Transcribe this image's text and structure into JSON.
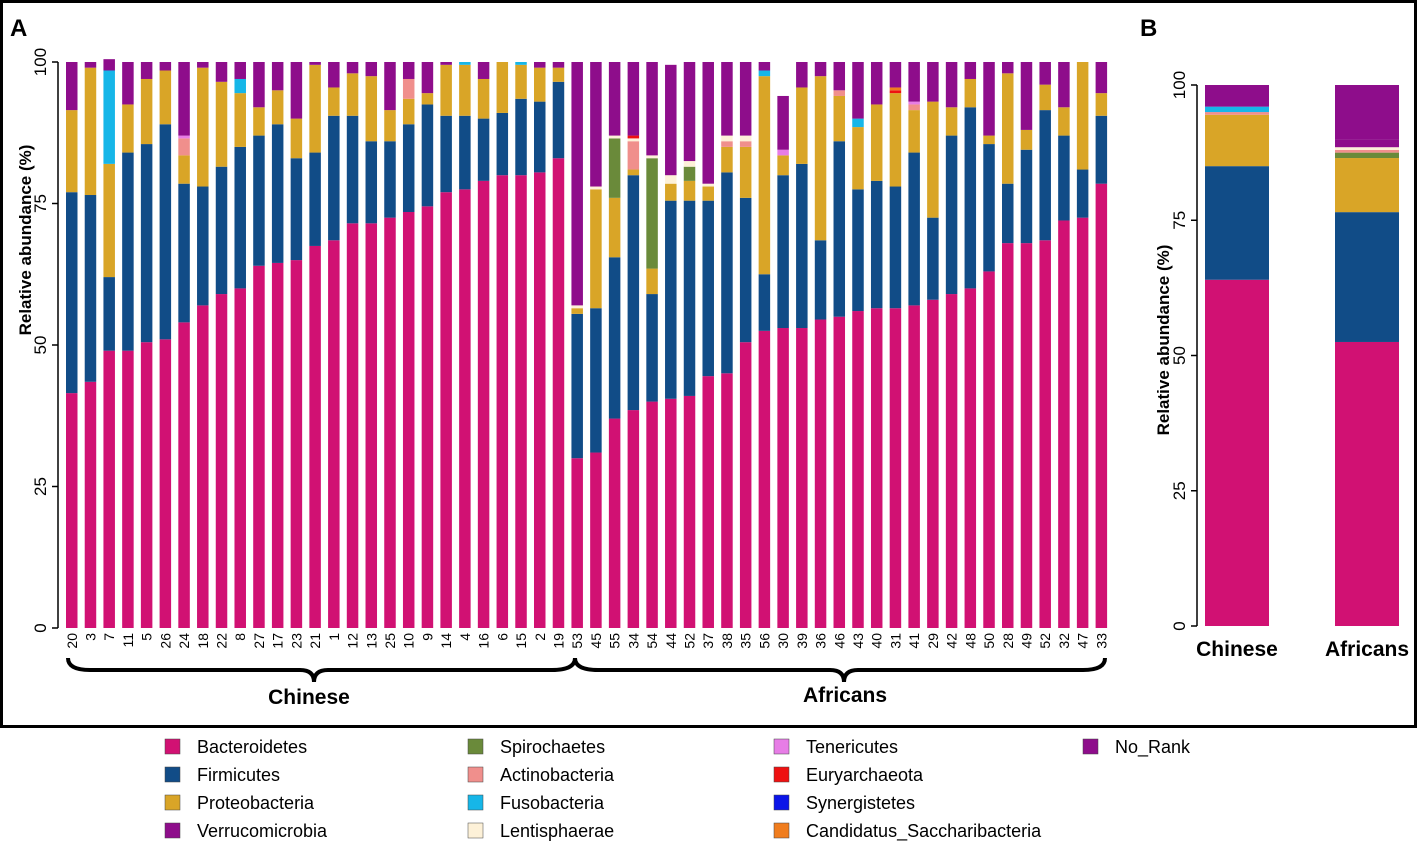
{
  "colors": {
    "Bacteroidetes": "#d11173",
    "Firmicutes": "#114c87",
    "Proteobacteria": "#d9a527",
    "Verrucomicrobia": "#8e0d8b",
    "Spirochaetes": "#6a8a3a",
    "Actinobacteria": "#f08f8c",
    "Fusobacteria": "#16b6e8",
    "Lentisphaerae": "#fdf1d8",
    "Tenericutes": "#e77de6",
    "Euryarchaeota": "#ee1111",
    "Synergistetes": "#0b15e8",
    "Candidatus_Saccharibacteria": "#f07d1e",
    "No_Rank": "#8e0d8b"
  },
  "panel_a_letter": "A",
  "panel_b_letter": "B",
  "group_labels": {
    "chinese": "Chinese",
    "africans": "Africans"
  },
  "legend": [
    "Bacteroidetes",
    "Firmicutes",
    "Proteobacteria",
    "Verrucomicrobia",
    "Spirochaetes",
    "Actinobacteria",
    "Fusobacteria",
    "Lentisphaerae",
    "Tenericutes",
    "Euryarchaeota",
    "Synergistetes",
    "Candidatus_Saccharibacteria",
    "No_Rank"
  ],
  "chart_data": [
    {
      "panel": "A",
      "type": "bar",
      "stacked": true,
      "title": "",
      "ylabel": "Relative abundance (%)",
      "ylim": [
        0,
        100
      ],
      "yticks": [
        0,
        25,
        50,
        75,
        100
      ],
      "categories": [
        "20",
        "3",
        "7",
        "11",
        "5",
        "26",
        "24",
        "18",
        "22",
        "8",
        "27",
        "17",
        "23",
        "21",
        "1",
        "12",
        "13",
        "25",
        "10",
        "9",
        "14",
        "4",
        "16",
        "6",
        "15",
        "2",
        "19",
        "53",
        "45",
        "55",
        "34",
        "54",
        "44",
        "52",
        "37",
        "38",
        "35",
        "56",
        "30",
        "39",
        "36",
        "46",
        "43",
        "40",
        "31",
        "41",
        "29",
        "42",
        "48",
        "50",
        "28",
        "49",
        "52",
        "32",
        "47",
        "33"
      ],
      "groups": [
        {
          "name": "Chinese",
          "count": 27
        },
        {
          "name": "Africans",
          "count": 29
        }
      ],
      "series": [
        {
          "name": "Bacteroidetes",
          "values": [
            41.5,
            43.5,
            49,
            49,
            50.5,
            51,
            54,
            57,
            59,
            60,
            64,
            64.5,
            65,
            67.5,
            68.5,
            71.5,
            71.5,
            72.5,
            73.5,
            74.5,
            77,
            77.5,
            79,
            80,
            80,
            80.5,
            83,
            30,
            31,
            37,
            38.5,
            40,
            40.5,
            41,
            44.5,
            45,
            50.5,
            52.5,
            53,
            53,
            54.5,
            55,
            56,
            56.5,
            56.5,
            57,
            58,
            59,
            60,
            63,
            68,
            68,
            68.5,
            72,
            72.5,
            78.5
          ]
        },
        {
          "name": "Firmicutes",
          "values": [
            35.5,
            33,
            13,
            35,
            35,
            38,
            24.5,
            21,
            22.5,
            25,
            23,
            24.5,
            18,
            16.5,
            22,
            19,
            14.5,
            13.5,
            15.5,
            18,
            13.5,
            13,
            11,
            11,
            13.5,
            12.5,
            13.5,
            25.5,
            25.5,
            28.5,
            41.5,
            19,
            35,
            34.5,
            31,
            35.5,
            25.5,
            10,
            27,
            29,
            14,
            31,
            21.5,
            22.5,
            21.5,
            27,
            14.5,
            28,
            32,
            22.5,
            10.5,
            16.5,
            23,
            15,
            8.5,
            12
          ]
        },
        {
          "name": "Proteobacteria",
          "values": [
            14.5,
            22.5,
            20,
            8.5,
            11.5,
            9.5,
            5,
            21,
            15,
            9.5,
            5,
            6,
            7,
            15.5,
            5,
            7.5,
            11.5,
            5.5,
            4.5,
            2,
            9,
            9,
            7,
            9,
            6,
            6,
            2.5,
            1,
            21,
            10.5,
            1,
            4.5,
            3,
            3.5,
            2.5,
            4.5,
            9,
            35,
            3.5,
            13.5,
            29,
            8,
            11,
            13.5,
            16.5,
            7.5,
            20.5,
            5,
            5,
            1.5,
            19.5,
            3.5,
            4.5,
            5,
            19,
            4
          ]
        },
        {
          "name": "Spirochaetes",
          "values": [
            0,
            0,
            0,
            0,
            0,
            0,
            0,
            0,
            0,
            0,
            0,
            0,
            0,
            0,
            0,
            0,
            0,
            0,
            0,
            0,
            0,
            0,
            0,
            0,
            0,
            0,
            0,
            0,
            0,
            10.5,
            0,
            19.5,
            0,
            2.5,
            0,
            0,
            0,
            0,
            0,
            0,
            0,
            0,
            0,
            0,
            0,
            0,
            0,
            0,
            0,
            0,
            0,
            0,
            0,
            0,
            0,
            0
          ]
        },
        {
          "name": "Actinobacteria",
          "values": [
            0,
            0,
            0,
            0,
            0,
            0,
            3,
            0,
            0,
            0,
            0,
            0,
            0,
            0,
            0,
            0,
            0,
            0,
            3.5,
            0,
            0,
            0,
            0,
            0,
            0,
            0,
            0,
            0,
            0,
            0,
            5,
            0,
            0,
            0,
            0,
            1,
            1,
            0,
            0,
            0,
            0,
            1,
            0,
            0,
            0,
            1,
            0,
            0,
            0,
            0,
            0,
            0,
            0,
            0,
            0,
            0
          ]
        },
        {
          "name": "Fusobacteria",
          "values": [
            0,
            0,
            16.5,
            0,
            0,
            0,
            0,
            0,
            0,
            2.5,
            0,
            0,
            0,
            0,
            0,
            0,
            0,
            0,
            0,
            0,
            0,
            0.5,
            0,
            0,
            0.5,
            0,
            0,
            0,
            0,
            0,
            0,
            0,
            0,
            0,
            0,
            0,
            0,
            1,
            0,
            0,
            0,
            0,
            1.5,
            0,
            0,
            0,
            0,
            0,
            0,
            0,
            0,
            0,
            0,
            0,
            0,
            0
          ]
        },
        {
          "name": "Lentisphaerae",
          "values": [
            0,
            0,
            0,
            0,
            0,
            0,
            0,
            0,
            0,
            0,
            0,
            0,
            0,
            0,
            0,
            0,
            0,
            0,
            0,
            0,
            0,
            0,
            0,
            0,
            0,
            0,
            0,
            0.5,
            0.5,
            0.5,
            0.5,
            0.5,
            1.5,
            1,
            0.5,
            1,
            1,
            0,
            0,
            0,
            0,
            0,
            0,
            0,
            0,
            0,
            0,
            0,
            0,
            0,
            0,
            0,
            0,
            0,
            0,
            0
          ]
        },
        {
          "name": "Tenericutes",
          "values": [
            0,
            0,
            0,
            0,
            0,
            0,
            0.5,
            0,
            0,
            0,
            0,
            0,
            0,
            0,
            0,
            0,
            0,
            0,
            0,
            0,
            0,
            0,
            0,
            0,
            0,
            0,
            0,
            0,
            0,
            0,
            0,
            0,
            0,
            0,
            0,
            0,
            0,
            0,
            1,
            0,
            0,
            0,
            0,
            0,
            0,
            0.5,
            0,
            0,
            0,
            0,
            0,
            0,
            0,
            0,
            0,
            0
          ]
        },
        {
          "name": "Euryarchaeota",
          "values": [
            0,
            0,
            0,
            0,
            0,
            0,
            0,
            0,
            0,
            0,
            0,
            0,
            0,
            0,
            0,
            0,
            0,
            0,
            0,
            0,
            0,
            0,
            0,
            0,
            0,
            0,
            0,
            0,
            0,
            0,
            0.5,
            0,
            0,
            0,
            0,
            0,
            0,
            0,
            0,
            0,
            0,
            0,
            0,
            0,
            0.5,
            0,
            0,
            0,
            0,
            0,
            0,
            0,
            0,
            0,
            0,
            0
          ]
        },
        {
          "name": "Synergistetes",
          "values": [
            0,
            0,
            0,
            0,
            0,
            0,
            0,
            0,
            0,
            0,
            0,
            0,
            0,
            0,
            0,
            0,
            0,
            0,
            0,
            0,
            0,
            0,
            0,
            0,
            0,
            0,
            0,
            0,
            0,
            0,
            0,
            0,
            0,
            0,
            0,
            0,
            0,
            0,
            0,
            0,
            0,
            0,
            0,
            0,
            0,
            0,
            0,
            0,
            0,
            0,
            0,
            0,
            0,
            0,
            0,
            0
          ]
        },
        {
          "name": "Candidatus_Saccharibacteria",
          "values": [
            0,
            0,
            0,
            0,
            0,
            0,
            0,
            0,
            0,
            0,
            0,
            0,
            0,
            0,
            0,
            0,
            0,
            0,
            0,
            0,
            0,
            0,
            0,
            0,
            0,
            0,
            0,
            0,
            0,
            0,
            0,
            0,
            0,
            0,
            0,
            0,
            0,
            0,
            0,
            0,
            0,
            0,
            0,
            0,
            0.5,
            0,
            0,
            0,
            0,
            0,
            0,
            0,
            0,
            0,
            0,
            0
          ]
        },
        {
          "name": "Verrucomicrobia",
          "values": [
            0,
            0,
            0,
            0,
            0,
            0,
            0,
            0,
            0,
            0,
            0,
            0,
            0,
            0,
            0,
            0,
            0,
            0,
            0,
            0,
            0,
            0,
            0,
            0,
            0,
            0,
            0,
            0,
            0,
            0,
            0,
            0,
            0,
            0,
            0,
            0,
            0,
            0,
            0,
            0,
            0,
            0,
            0,
            0,
            0,
            0,
            0,
            0,
            0,
            0,
            0,
            0,
            0,
            0,
            0,
            0
          ]
        },
        {
          "name": "No_Rank",
          "values": [
            8.5,
            1,
            2,
            7.5,
            3,
            1.5,
            13,
            1,
            3.5,
            3,
            8,
            5,
            10,
            0.5,
            4.5,
            2,
            2.5,
            8.5,
            3,
            5.5,
            0.5,
            0,
            3,
            0,
            0,
            1,
            1,
            43,
            22,
            13,
            13,
            16.5,
            19.5,
            17.5,
            21.5,
            13,
            13,
            1.5,
            9.5,
            4.5,
            2.5,
            5,
            10,
            7.5,
            4.5,
            7,
            7,
            8,
            3,
            13,
            2,
            12,
            4,
            8,
            0,
            5.5
          ]
        }
      ]
    },
    {
      "panel": "B",
      "type": "bar",
      "stacked": true,
      "title": "",
      "ylabel": "Relative abundance (%)",
      "ylim": [
        0,
        100
      ],
      "yticks": [
        0,
        25,
        50,
        75,
        100
      ],
      "categories": [
        "Chinese",
        "Africans"
      ],
      "series": [
        {
          "name": "Bacteroidetes",
          "values": [
            64,
            52.5
          ]
        },
        {
          "name": "Firmicutes",
          "values": [
            21,
            24
          ]
        },
        {
          "name": "Proteobacteria",
          "values": [
            9.5,
            10
          ]
        },
        {
          "name": "Spirochaetes",
          "values": [
            0,
            1
          ]
        },
        {
          "name": "Actinobacteria",
          "values": [
            0.5,
            0.5
          ]
        },
        {
          "name": "Fusobacteria",
          "values": [
            1,
            0
          ]
        },
        {
          "name": "Lentisphaerae",
          "values": [
            0,
            0.5
          ]
        },
        {
          "name": "Tenericutes",
          "values": [
            0,
            0
          ]
        },
        {
          "name": "Euryarchaeota",
          "values": [
            0,
            0
          ]
        },
        {
          "name": "Synergistetes",
          "values": [
            0,
            0
          ]
        },
        {
          "name": "Candidatus_Saccharibacteria",
          "values": [
            0,
            0
          ]
        },
        {
          "name": "Verrucomicrobia",
          "values": [
            0,
            1.5
          ]
        },
        {
          "name": "No_Rank",
          "values": [
            4,
            10
          ]
        }
      ]
    }
  ]
}
